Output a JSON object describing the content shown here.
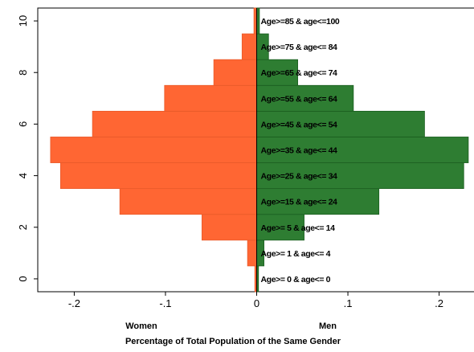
{
  "chart_data": {
    "type": "bar",
    "orientation": "horizontal",
    "xlabel": "Percentage of Total Population of the Same Gender",
    "side_labels": {
      "women": "Women",
      "men": "Men"
    },
    "xlim": [
      -0.24,
      0.24
    ],
    "ylim": [
      -0.5,
      10.5
    ],
    "x_ticks": [
      -0.2,
      -0.1,
      0,
      0.1,
      0.2
    ],
    "x_tick_labels": [
      "-.2",
      "-.1",
      "0",
      ".1",
      ".2"
    ],
    "y_ticks": [
      0,
      2,
      4,
      6,
      8,
      10
    ],
    "y_tick_labels": [
      "0",
      "2",
      "4",
      "6",
      "8",
      "10"
    ],
    "grid": false,
    "bins": [
      0,
      1,
      2,
      3,
      4,
      5,
      6,
      7,
      8,
      9,
      10
    ],
    "categories": [
      "Age>= 0 & age<= 0",
      "Age>= 1 & age<= 4",
      "Age>= 5 & age<= 14",
      "Age>=15 & age<= 24",
      "Age>=25 & age<= 34",
      "Age>=35 & age<= 44",
      "Age>=45 & age<= 54",
      "Age>=55 & age<= 64",
      "Age>=65 & age<= 74",
      "Age>=75 & age<= 84",
      "Age>=85 & age<=100"
    ],
    "series": [
      {
        "name": "Women",
        "color": "#FF6633",
        "values": [
          -0.002,
          -0.01,
          -0.06,
          -0.15,
          -0.215,
          -0.226,
          -0.18,
          -0.101,
          -0.047,
          -0.016,
          -0.003
        ]
      },
      {
        "name": "Men",
        "color": "#2E7D32",
        "values": [
          0.002,
          0.008,
          0.052,
          0.134,
          0.227,
          0.232,
          0.184,
          0.106,
          0.045,
          0.013,
          0.003
        ]
      }
    ]
  }
}
